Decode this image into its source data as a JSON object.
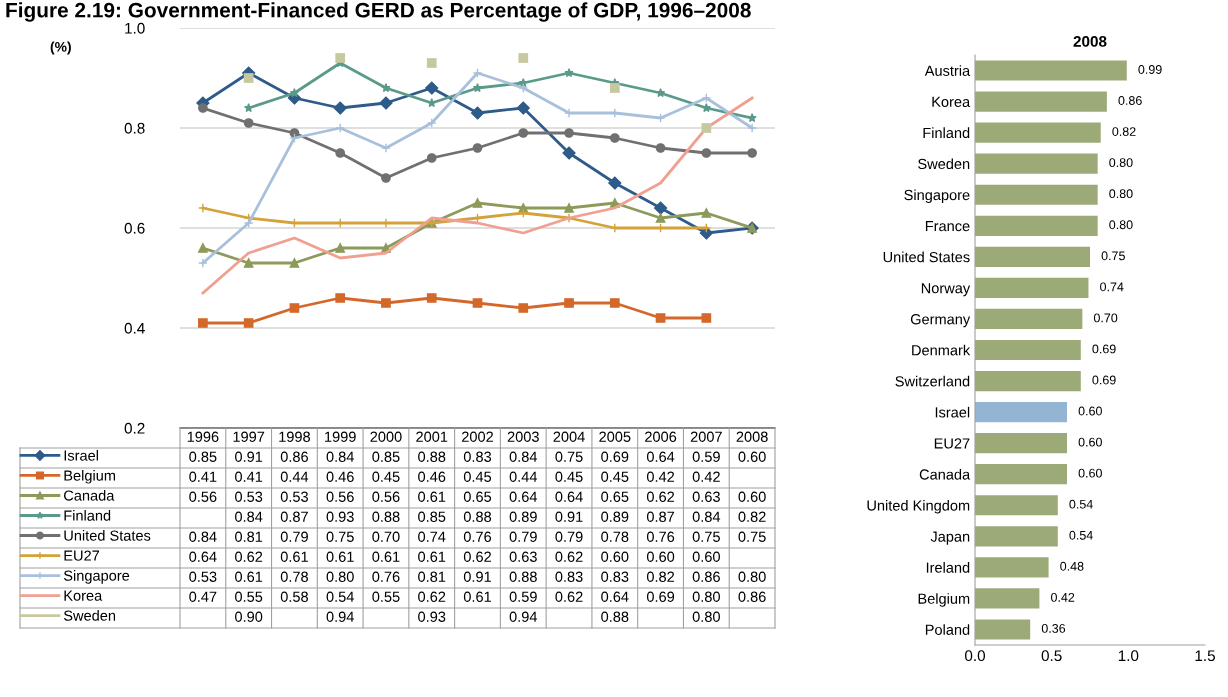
{
  "chart_data": [
    {
      "type": "line",
      "title": "Figure 2.19: Government-Financed GERD as Percentage of GDP, 1996–2008",
      "ylabel": "(%)",
      "categories": [
        "1996",
        "1997",
        "1998",
        "1999",
        "2000",
        "2001",
        "2002",
        "2003",
        "2004",
        "2005",
        "2006",
        "2007",
        "2008"
      ],
      "ylim": [
        0.2,
        1.0
      ],
      "yticks": [
        0.2,
        0.4,
        0.6,
        0.8,
        {
          "value": 1.0,
          "label": "1.0"
        }
      ],
      "grid": "y",
      "legend": "bottom left",
      "series": [
        {
          "name": "Israel",
          "color": "#2e5b8a",
          "marker": "diamond",
          "values": [
            0.85,
            0.91,
            0.86,
            0.84,
            0.85,
            0.88,
            0.83,
            0.84,
            0.75,
            0.69,
            0.64,
            0.59,
            0.6
          ],
          "value_labels": [
            "0.85",
            "0.91",
            "0.86",
            "0.84",
            "0.85",
            "0.88",
            "0.83",
            "0.84",
            "0.75",
            "0.69",
            "0.64",
            "0.59",
            "0.60"
          ]
        },
        {
          "name": "Belgium",
          "color": "#d4682a",
          "marker": "square",
          "values": [
            0.41,
            0.41,
            0.44,
            0.46,
            0.45,
            0.46,
            0.45,
            0.44,
            0.45,
            0.45,
            0.42,
            0.42,
            null
          ],
          "value_labels": [
            "0.41",
            "0.41",
            "0.44",
            "0.46",
            "0.45",
            "0.46",
            "0.45",
            "0.44",
            "0.45",
            "0.45",
            "0.42",
            "0.42",
            null
          ]
        },
        {
          "name": "Canada",
          "color": "#8c9a5a",
          "marker": "triangle",
          "values": [
            0.56,
            0.53,
            0.53,
            0.56,
            0.56,
            0.61,
            0.65,
            0.64,
            0.64,
            0.65,
            0.62,
            0.63,
            0.6
          ],
          "value_labels": [
            "0.56",
            "0.53",
            "0.53",
            "0.56",
            "0.56",
            "0.61",
            "0.65",
            "0.64",
            "0.64",
            "0.65",
            "0.62",
            "0.63",
            "0.60"
          ]
        },
        {
          "name": "Finland",
          "color": "#5a9a8a",
          "marker": "star",
          "values": [
            null,
            0.84,
            0.87,
            0.93,
            0.88,
            0.85,
            0.88,
            0.89,
            0.91,
            0.89,
            0.87,
            0.84,
            0.82
          ],
          "value_labels": [
            null,
            "0.84",
            "0.87",
            "0.93",
            "0.88",
            "0.85",
            "0.88",
            "0.89",
            "0.91",
            "0.89",
            "0.87",
            "0.84",
            "0.82"
          ]
        },
        {
          "name": "United States",
          "color": "#707070",
          "marker": "circle",
          "values": [
            0.84,
            0.81,
            0.79,
            0.75,
            0.7,
            0.74,
            0.76,
            0.79,
            0.79,
            0.78,
            0.76,
            0.75,
            0.75
          ],
          "value_labels": [
            "0.84",
            "0.81",
            "0.79",
            "0.75",
            "0.70",
            "0.74",
            "0.76",
            "0.79",
            "0.79",
            "0.78",
            "0.76",
            "0.75",
            "0.75"
          ]
        },
        {
          "name": "EU27",
          "color": "#d4a23a",
          "marker": "cross",
          "values": [
            0.64,
            0.62,
            0.61,
            0.61,
            0.61,
            0.61,
            0.62,
            0.63,
            0.62,
            0.6,
            0.6,
            0.6,
            null
          ],
          "value_labels": [
            "0.64",
            "0.62",
            "0.61",
            "0.61",
            "0.61",
            "0.61",
            "0.62",
            "0.63",
            "0.62",
            "0.60",
            "0.60",
            "0.60",
            null
          ]
        },
        {
          "name": "Singapore",
          "color": "#a8c0dc",
          "marker": "cross",
          "values": [
            0.53,
            0.61,
            0.78,
            0.8,
            0.76,
            0.81,
            0.91,
            0.88,
            0.83,
            0.83,
            0.82,
            0.86,
            0.8
          ],
          "value_labels": [
            "0.53",
            "0.61",
            "0.78",
            "0.80",
            "0.76",
            "0.81",
            "0.91",
            "0.88",
            "0.83",
            "0.83",
            "0.82",
            "0.86",
            "0.80"
          ]
        },
        {
          "name": "Korea",
          "color": "#f0a090",
          "marker": "none",
          "values": [
            0.47,
            0.55,
            0.58,
            0.54,
            0.55,
            0.62,
            0.61,
            0.59,
            0.62,
            0.64,
            0.69,
            0.8,
            0.86
          ],
          "value_labels": [
            "0.47",
            "0.55",
            "0.58",
            "0.54",
            "0.55",
            "0.62",
            "0.61",
            "0.59",
            "0.62",
            "0.64",
            "0.69",
            "0.80",
            "0.86"
          ]
        },
        {
          "name": "Sweden",
          "color": "#c8c8a0",
          "type": "scatter",
          "marker": "square",
          "values": [
            null,
            0.9,
            null,
            0.94,
            null,
            0.93,
            null,
            0.94,
            null,
            0.88,
            null,
            0.8,
            null
          ],
          "value_labels": [
            null,
            "0.90",
            null,
            "0.94",
            null,
            "0.93",
            null,
            "0.94",
            null,
            "0.88",
            null,
            "0.80",
            null
          ]
        }
      ]
    },
    {
      "type": "bar",
      "orientation": "horizontal",
      "title": "2008",
      "categories": [
        "Austria",
        "Korea",
        "Finland",
        "Sweden",
        "Singapore",
        "France",
        "United States",
        "Norway",
        "Germany",
        "Denmark",
        "Switzerland",
        "Israel",
        "EU27",
        "Canada",
        "United Kingdom",
        "Japan",
        "Ireland",
        "Belgium",
        "Poland"
      ],
      "values": [
        0.99,
        0.86,
        0.82,
        0.8,
        0.8,
        0.8,
        0.75,
        0.74,
        0.7,
        0.69,
        0.69,
        0.6,
        0.6,
        0.6,
        0.54,
        0.54,
        0.48,
        0.42,
        0.36
      ],
      "value_labels": [
        "0.99",
        "0.86",
        "0.82",
        "0.80",
        "0.80",
        "0.80",
        "0.75",
        "0.74",
        "0.70",
        "0.69",
        "0.69",
        "0.60",
        "0.60",
        "0.60",
        "0.54",
        "0.54",
        "0.48",
        "0.42",
        "0.36"
      ],
      "colors": [
        "#9caa78",
        "#9caa78",
        "#9caa78",
        "#9caa78",
        "#9caa78",
        "#9caa78",
        "#9caa78",
        "#9caa78",
        "#9caa78",
        "#9caa78",
        "#9caa78",
        "#94b4d4",
        "#9caa78",
        "#9caa78",
        "#9caa78",
        "#9caa78",
        "#9caa78",
        "#9caa78",
        "#9caa78"
      ],
      "xlim": [
        0,
        1.5
      ],
      "xticks": [
        {
          "value": 0,
          "label": "0.0"
        },
        0.5,
        {
          "value": 1.0,
          "label": "1.0"
        },
        1.5
      ]
    }
  ]
}
